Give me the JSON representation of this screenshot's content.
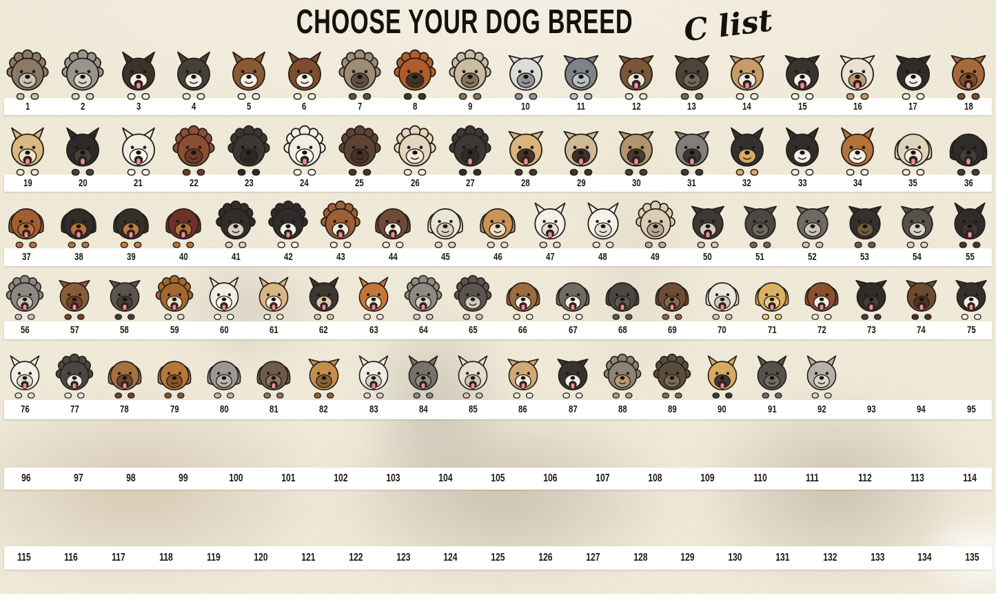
{
  "title": {
    "main": "CHOOSE YOUR DOG BREED",
    "script": "C list"
  },
  "palette": {
    "background": "#f0ead9",
    "strip": "#ffffff",
    "number_color": "#1b1813",
    "title_color": "#15120e",
    "tongue_pink": "#ec8aa0",
    "mouth_dark": "#4a1f22",
    "outline": "#241f1a",
    "smoke_tan": "#bfae96",
    "smoke_brown": "#a89a86",
    "smoke_gray": "#9a958c"
  },
  "rows": [
    {
      "name": "row-1",
      "numbers": [
        1,
        2,
        3,
        4,
        5,
        6,
        7,
        8,
        9,
        10,
        11,
        12,
        13,
        14,
        15,
        16,
        17,
        18
      ]
    },
    {
      "name": "row-2",
      "numbers": [
        19,
        20,
        21,
        22,
        23,
        24,
        25,
        26,
        27,
        28,
        29,
        30,
        31,
        32,
        33,
        34,
        35,
        36
      ]
    },
    {
      "name": "row-3",
      "numbers": [
        37,
        38,
        39,
        40,
        41,
        42,
        43,
        44,
        45,
        46,
        47,
        48,
        49,
        50,
        51,
        52,
        53,
        54,
        55
      ]
    },
    {
      "name": "row-4",
      "numbers": [
        56,
        57,
        58,
        59,
        60,
        61,
        62,
        63,
        64,
        65,
        66,
        67,
        68,
        69,
        70,
        71,
        72,
        73,
        74,
        75
      ]
    },
    {
      "name": "row-5",
      "numbers": [
        76,
        77,
        78,
        79,
        80,
        81,
        82,
        83,
        84,
        85,
        86,
        87,
        88,
        89,
        90,
        91,
        92,
        93,
        94,
        95
      ]
    },
    {
      "name": "row-6",
      "numbers": [
        96,
        97,
        98,
        99,
        100,
        101,
        102,
        103,
        104,
        105,
        106,
        107,
        108,
        109,
        110,
        111,
        112,
        113,
        114
      ]
    },
    {
      "name": "row-7",
      "numbers": [
        115,
        116,
        117,
        118,
        119,
        120,
        121,
        122,
        123,
        124,
        125,
        126,
        127,
        128,
        129,
        130,
        131,
        132,
        133,
        134,
        135
      ]
    }
  ],
  "dogs": [
    {
      "n": 1,
      "breed": "shaggy-terrier-brown-gray",
      "ears": "fluffy",
      "c1": "#8d7a66",
      "c2": "#cdc2b2",
      "tongue": false
    },
    {
      "n": 2,
      "breed": "shaggy-sheepdog-gray",
      "ears": "fluffy",
      "c1": "#9a958c",
      "c2": "#d9d5cc",
      "tongue": false
    },
    {
      "n": 3,
      "breed": "papillon-black-tan-white",
      "ears": "prick",
      "c1": "#3b332a",
      "c2": "#f4f0e6",
      "tongue": true
    },
    {
      "n": 4,
      "breed": "papillon-black-white",
      "ears": "prick",
      "c1": "#474038",
      "c2": "#efece4",
      "tongue": false
    },
    {
      "n": 5,
      "breed": "papillon-brown-white",
      "ears": "prick",
      "c1": "#8a5a33",
      "c2": "#f2eee4",
      "tongue": false
    },
    {
      "n": 6,
      "breed": "papillon-red-white",
      "ears": "prick",
      "c1": "#7d4e2b",
      "c2": "#f2eee4",
      "tongue": false
    },
    {
      "n": 7,
      "breed": "pekingese-gray-fawn",
      "ears": "fluffy",
      "c1": "#9d8d75",
      "c2": "#5f5142",
      "tongue": false
    },
    {
      "n": 8,
      "breed": "pekingese-red",
      "ears": "fluffy",
      "c1": "#b05d2b",
      "c2": "#42332a",
      "tongue": false
    },
    {
      "n": 9,
      "breed": "pekingese-cream",
      "ears": "fluffy",
      "c1": "#cabca1",
      "c2": "#857459",
      "tongue": false
    },
    {
      "n": 10,
      "breed": "pitbull-white-gray-patch",
      "ears": "fold",
      "c1": "#dcdbd6",
      "c2": "#8f949c",
      "tongue": false
    },
    {
      "n": 11,
      "breed": "pitbull-blue-brindle",
      "ears": "fold",
      "c1": "#7e8289",
      "c2": "#babdc2",
      "tongue": false
    },
    {
      "n": 12,
      "breed": "pitbull-brown-brindle",
      "ears": "fold",
      "c1": "#7b5737",
      "c2": "#e9e3d6",
      "tongue": true
    },
    {
      "n": 13,
      "breed": "pitbull-dark-brindle",
      "ears": "fold",
      "c1": "#4b443b",
      "c2": "#6f6859",
      "tongue": false
    },
    {
      "n": 14,
      "breed": "pitbull-tan-white",
      "ears": "fold",
      "c1": "#c99c67",
      "c2": "#f0e8da",
      "tongue": true
    },
    {
      "n": 15,
      "breed": "pitbull-black-white",
      "ears": "fold",
      "c1": "#37342f",
      "c2": "#f4f1eb",
      "tongue": true
    },
    {
      "n": 16,
      "breed": "pitbull-white-tan-patch",
      "ears": "fold",
      "c1": "#e9e2d3",
      "c2": "#bf9a6c",
      "tongue": true
    },
    {
      "n": 17,
      "breed": "pitbull-black-tuxedo",
      "ears": "fold",
      "c1": "#302d29",
      "c2": "#f2efe8",
      "tongue": false
    },
    {
      "n": 18,
      "breed": "pitbull-red-brindle",
      "ears": "fold",
      "c1": "#a56a3a",
      "c2": "#7c4e2a",
      "tongue": true
    },
    {
      "n": 19,
      "breed": "pomeranian-tan",
      "ears": "prick",
      "c1": "#dab883",
      "c2": "#f1e4c9",
      "tongue": true
    },
    {
      "n": 20,
      "breed": "pomeranian-black",
      "ears": "prick",
      "c1": "#2d2b28",
      "c2": "#45423d",
      "tongue": true
    },
    {
      "n": 21,
      "breed": "pomeranian-white",
      "ears": "prick",
      "c1": "#f1ede2",
      "c2": "#fbf9f4",
      "tongue": true
    },
    {
      "n": 22,
      "breed": "poodle-red-brown",
      "ears": "fluffy",
      "c1": "#8d4f34",
      "c2": "#6f3b26",
      "tongue": false
    },
    {
      "n": 23,
      "breed": "poodle-black",
      "ears": "fluffy",
      "c1": "#3b3733",
      "c2": "#2c2a27",
      "tongue": false
    },
    {
      "n": 24,
      "breed": "poodle-white",
      "ears": "fluffy",
      "c1": "#f2eee4",
      "c2": "#fdfbf6",
      "tongue": true
    },
    {
      "n": 25,
      "breed": "poodle-dark-brown",
      "ears": "fluffy",
      "c1": "#5d4333",
      "c2": "#483328",
      "tongue": false
    },
    {
      "n": 26,
      "breed": "poodle-apricot",
      "ears": "fluffy",
      "c1": "#e4d5bd",
      "c2": "#f3eadb",
      "tongue": false
    },
    {
      "n": 27,
      "breed": "puli-black-shaggy",
      "ears": "fluffy",
      "c1": "#3b3936",
      "c2": "#2f2d2b",
      "tongue": true
    },
    {
      "n": 28,
      "breed": "pug-fawn",
      "ears": "fold",
      "c1": "#d9b57d",
      "c2": "#443629",
      "tongue": true
    },
    {
      "n": 29,
      "breed": "pug-light-fawn",
      "ears": "fold",
      "c1": "#d0b997",
      "c2": "#3f342b",
      "tongue": true
    },
    {
      "n": 30,
      "breed": "pug-dark-fawn",
      "ears": "fold",
      "c1": "#b3956b",
      "c2": "#4b3b2d",
      "tongue": true
    },
    {
      "n": 31,
      "breed": "pug-gray",
      "ears": "fold",
      "c1": "#807e7a",
      "c2": "#3b3937",
      "tongue": true
    },
    {
      "n": 32,
      "breed": "rat-terrier-tricolor",
      "ears": "prick",
      "c1": "#33312d",
      "c2": "#d9a967",
      "tongue": false
    },
    {
      "n": 33,
      "breed": "rat-terrier-black-white",
      "ears": "prick",
      "c1": "#302e2b",
      "c2": "#f2efe9",
      "tongue": false
    },
    {
      "n": 34,
      "breed": "rat-terrier-red-white",
      "ears": "prick",
      "c1": "#b6723b",
      "c2": "#f5f0e5",
      "tongue": false
    },
    {
      "n": 35,
      "breed": "labrador-yellow",
      "ears": "floppy",
      "c1": "#dfd3b9",
      "c2": "#f1eadb",
      "tongue": true
    },
    {
      "n": 36,
      "breed": "labrador-black",
      "ears": "floppy",
      "c1": "#2f2d2b",
      "c2": "#423f3b",
      "tongue": true
    },
    {
      "n": 37,
      "breed": "redbone-coonhound",
      "ears": "floppy",
      "c1": "#a35d33",
      "c2": "#ba703f",
      "tongue": true
    },
    {
      "n": 38,
      "breed": "rottweiler-black-tan",
      "ears": "floppy",
      "c1": "#2f2c29",
      "c2": "#b6723b",
      "tongue": true
    },
    {
      "n": 39,
      "breed": "rottweiler-black-rust",
      "ears": "floppy",
      "c1": "#343028",
      "c2": "#c17b41",
      "tongue": true
    },
    {
      "n": 40,
      "breed": "rottweiler-red",
      "ears": "floppy",
      "c1": "#6f3127",
      "c2": "#b6723b",
      "tongue": true
    },
    {
      "n": 41,
      "breed": "sheltie-tricolor",
      "ears": "fluffy",
      "c1": "#302d2a",
      "c2": "#d9cebd",
      "tongue": false
    },
    {
      "n": 42,
      "breed": "sheltie-black-white",
      "ears": "fluffy",
      "c1": "#2f2d2b",
      "c2": "#f3f0e9",
      "tongue": true
    },
    {
      "n": 43,
      "breed": "sheltie-sable",
      "ears": "fluffy",
      "c1": "#9d5f35",
      "c2": "#f1eadd",
      "tongue": true
    },
    {
      "n": 44,
      "breed": "saint-bernard",
      "ears": "floppy",
      "c1": "#6f4b35",
      "c2": "#f3eee3",
      "tongue": true
    },
    {
      "n": 45,
      "breed": "saluki-white",
      "ears": "floppy",
      "c1": "#eae5d9",
      "c2": "#dad3c3",
      "tongue": false
    },
    {
      "n": 46,
      "breed": "saluki-golden",
      "ears": "floppy",
      "c1": "#c99455",
      "c2": "#eaddc3",
      "tongue": false
    },
    {
      "n": 47,
      "breed": "samoyed-white",
      "ears": "prick",
      "c1": "#f3f0e9",
      "c2": "#e3ded3",
      "tongue": true
    },
    {
      "n": 48,
      "breed": "samoyed-smiling",
      "ears": "prick",
      "c1": "#f5f2eb",
      "c2": "#e7e2d7",
      "tongue": false
    },
    {
      "n": 49,
      "breed": "samoyed-cream-fluffy",
      "ears": "fluffy",
      "c1": "#dacdb3",
      "c2": "#b9a98d",
      "tongue": false
    },
    {
      "n": 50,
      "breed": "schnauzer-black-silver",
      "ears": "fold",
      "c1": "#3b3835",
      "c2": "#d0cabd",
      "tongue": true
    },
    {
      "n": 51,
      "breed": "schnauzer-dark-gray",
      "ears": "fold",
      "c1": "#4b4743",
      "c2": "#6c6761",
      "tongue": false
    },
    {
      "n": 52,
      "breed": "schnauzer-salt-pepper",
      "ears": "fold",
      "c1": "#6f6a63",
      "c2": "#cbc5b9",
      "tongue": false
    },
    {
      "n": 53,
      "breed": "schnauzer-black",
      "ears": "fold",
      "c1": "#34302d",
      "c2": "#6f5b3b",
      "tongue": false
    },
    {
      "n": 54,
      "breed": "schnauzer-silver",
      "ears": "fold",
      "c1": "#56514b",
      "c2": "#d9d4c9",
      "tongue": false
    },
    {
      "n": 55,
      "breed": "scottish-terrier-black",
      "ears": "prick",
      "c1": "#2f2c29",
      "c2": "#3d3936",
      "tongue": true
    },
    {
      "n": 56,
      "breed": "wire-terrier-gray",
      "ears": "fluffy",
      "c1": "#8d8981",
      "c2": "#cac5bb",
      "tongue": true
    },
    {
      "n": 57,
      "breed": "shar-pei-brown",
      "ears": "fold",
      "c1": "#8b5d37",
      "c2": "#6f4628",
      "tongue": true
    },
    {
      "n": 58,
      "breed": "shar-pei-gray",
      "ears": "fold",
      "c1": "#5b554d",
      "c2": "#443f39",
      "tongue": true
    },
    {
      "n": 59,
      "breed": "sheltie-sable-tongue",
      "ears": "fluffy",
      "c1": "#a56730",
      "c2": "#eaddc7",
      "tongue": true
    },
    {
      "n": 60,
      "breed": "shiba-white",
      "ears": "prick",
      "c1": "#f2ede1",
      "c2": "#fdfaf4",
      "tongue": true
    },
    {
      "n": 61,
      "breed": "shiba-tan",
      "ears": "prick",
      "c1": "#dab685",
      "c2": "#f5eddd",
      "tongue": true
    },
    {
      "n": 62,
      "breed": "shiba-black",
      "ears": "prick",
      "c1": "#3b3732",
      "c2": "#d9caa9",
      "tongue": true
    },
    {
      "n": 63,
      "breed": "shiba-red",
      "ears": "prick",
      "c1": "#c5773b",
      "c2": "#f3e9d5",
      "tongue": true
    },
    {
      "n": 64,
      "breed": "shih-tzu-gray-shaggy",
      "ears": "fluffy",
      "c1": "#908b81",
      "c2": "#d5cfc3",
      "tongue": true
    },
    {
      "n": 65,
      "breed": "shih-tzu-topknot",
      "ears": "fluffy",
      "c1": "#5b554d",
      "c2": "#d0c9bb",
      "tongue": false
    },
    {
      "n": 66,
      "breed": "shih-tzu-brown-white",
      "ears": "floppy",
      "c1": "#9d6b3d",
      "c2": "#f3ede1",
      "tongue": true
    },
    {
      "n": 67,
      "breed": "shih-tzu-gray-white",
      "ears": "floppy",
      "c1": "#6f6b65",
      "c2": "#f3f0e9",
      "tongue": true
    },
    {
      "n": 68,
      "breed": "shih-tzu-dark-gray",
      "ears": "floppy",
      "c1": "#4b4742",
      "c2": "#5f5a54",
      "tongue": true
    },
    {
      "n": 69,
      "breed": "shih-tzu-brown",
      "ears": "floppy",
      "c1": "#6f4d34",
      "c2": "#8b6b4b",
      "tongue": true
    },
    {
      "n": 70,
      "breed": "shih-tzu-white",
      "ears": "floppy",
      "c1": "#eae6db",
      "c2": "#d0cbbf",
      "tongue": true
    },
    {
      "n": 71,
      "breed": "golden-retriever-puppy",
      "ears": "floppy",
      "c1": "#dab162",
      "c2": "#e9cc8d",
      "tongue": true
    },
    {
      "n": 72,
      "breed": "springer-spaniel",
      "ears": "floppy",
      "c1": "#8b502d",
      "c2": "#f3ede1",
      "tongue": true
    },
    {
      "n": 73,
      "breed": "staffordshire-black",
      "ears": "fold",
      "c1": "#2f2d2a",
      "c2": "#434039",
      "tongue": true
    },
    {
      "n": 74,
      "breed": "staffordshire-brindle",
      "ears": "fold",
      "c1": "#6f4b2d",
      "c2": "#4b3423",
      "tongue": true
    },
    {
      "n": 75,
      "breed": "staffordshire-black-white",
      "ears": "fold",
      "c1": "#34302d",
      "c2": "#f2efe7",
      "tongue": true
    },
    {
      "n": 76,
      "breed": "white-shepherd",
      "ears": "prick",
      "c1": "#f3f0e8",
      "c2": "#e5e0d3",
      "tongue": true
    },
    {
      "n": 77,
      "breed": "tibetan-terrier-black-white",
      "ears": "fluffy",
      "c1": "#4b4742",
      "c2": "#eae6db",
      "tongue": true
    },
    {
      "n": 78,
      "breed": "mastiff-puppy-brown",
      "ears": "floppy",
      "c1": "#a57140",
      "c2": "#6f4628",
      "tongue": true
    },
    {
      "n": 79,
      "breed": "vizsla-red-hound",
      "ears": "floppy",
      "c1": "#b6773b",
      "c2": "#8b5327",
      "tongue": false
    },
    {
      "n": 80,
      "breed": "weimaraner-gray",
      "ears": "floppy",
      "c1": "#9c9792",
      "c2": "#b9b4ad",
      "tongue": false
    },
    {
      "n": 81,
      "breed": "weimaraner-brown",
      "ears": "floppy",
      "c1": "#6f5b49",
      "c2": "#8b7761",
      "tongue": true
    },
    {
      "n": 82,
      "breed": "welsh-terrier-tan",
      "ears": "fold",
      "c1": "#c58e4b",
      "c2": "#8b6333",
      "tongue": false
    },
    {
      "n": 83,
      "breed": "westie-white",
      "ears": "prick",
      "c1": "#efece3",
      "c2": "#dad5c9",
      "tongue": true
    },
    {
      "n": 84,
      "breed": "cairn-terrier-gray",
      "ears": "prick",
      "c1": "#77726b",
      "c2": "#908b83",
      "tongue": true
    },
    {
      "n": 85,
      "breed": "westie-cream",
      "ears": "prick",
      "c1": "#e5decd",
      "c2": "#d0c7b3",
      "tongue": true
    },
    {
      "n": 86,
      "breed": "whippet-fawn-white",
      "ears": "fold",
      "c1": "#d0a977",
      "c2": "#f3ede1",
      "tongue": true
    },
    {
      "n": 87,
      "breed": "whippet-black-white",
      "ears": "fold",
      "c1": "#37342f",
      "c2": "#f3f0ea",
      "tongue": true
    },
    {
      "n": 88,
      "breed": "yorkie-gray-tan",
      "ears": "fluffy",
      "c1": "#8b8378",
      "c2": "#b69b6f",
      "tongue": false
    },
    {
      "n": 89,
      "breed": "yorkie-dark-brown",
      "ears": "fluffy",
      "c1": "#5b4d3d",
      "c2": "#7b6b53",
      "tongue": false
    },
    {
      "n": 90,
      "breed": "yorkie-tan-puppy",
      "ears": "prick",
      "c1": "#daa961",
      "c2": "#3f3b35",
      "tongue": true
    },
    {
      "n": 91,
      "breed": "yorkie-gray-puppy",
      "ears": "prick",
      "c1": "#56524c",
      "c2": "#6f6b64",
      "tongue": false
    },
    {
      "n": 92,
      "breed": "yorkie-silver-puppy",
      "ears": "prick",
      "c1": "#b6b1a7",
      "c2": "#d9d5cc",
      "tongue": false
    }
  ]
}
